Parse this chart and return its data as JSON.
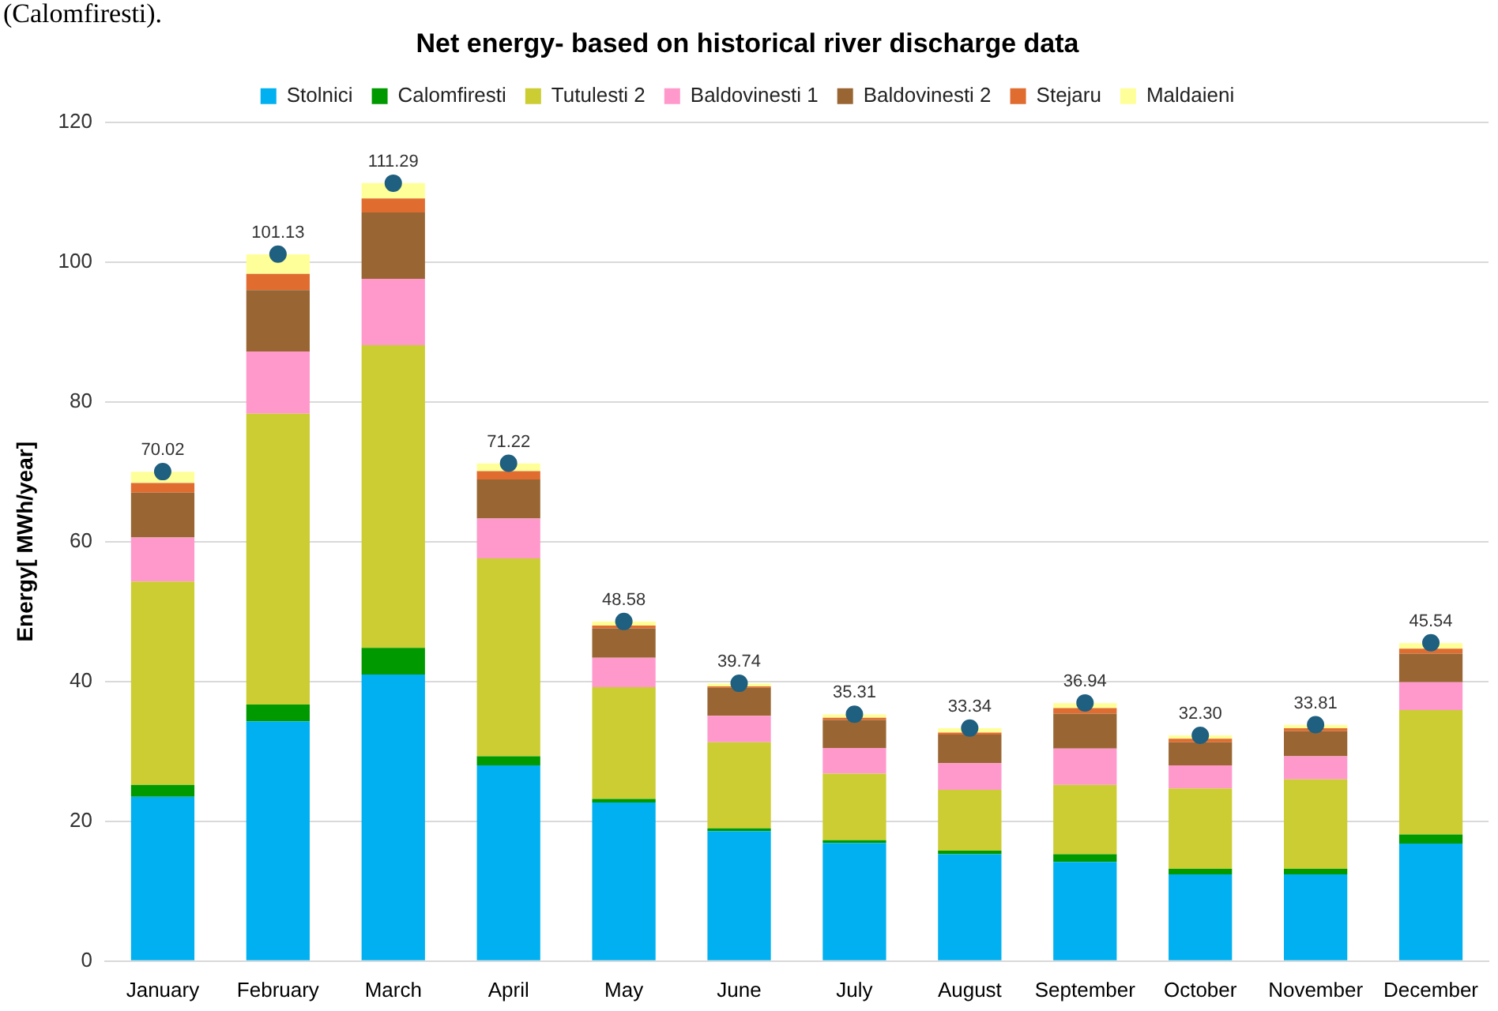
{
  "chart_data": {
    "type": "bar",
    "title": "Net energy- based on historical river discharge data",
    "ylabel": "Energy[ MWh/year]",
    "annotations": [
      "(Calomfiresti)."
    ],
    "categories": [
      "January",
      "February",
      "March",
      "April",
      "May",
      "June",
      "July",
      "August",
      "September",
      "October",
      "November",
      "December"
    ],
    "stacked": true,
    "ylim": [
      0,
      120
    ],
    "yticks": [
      0,
      20,
      40,
      60,
      80,
      100,
      120
    ],
    "grid": "y",
    "legend": "top",
    "series": [
      {
        "name": "Stolnici",
        "color": "#00b0f0",
        "values": [
          23.5,
          34.3,
          41.0,
          28.0,
          22.7,
          18.6,
          16.9,
          15.3,
          14.2,
          12.4,
          12.4,
          16.8
        ]
      },
      {
        "name": "Calomfiresti",
        "color": "#009900",
        "values": [
          1.7,
          2.4,
          3.8,
          1.3,
          0.5,
          0.4,
          0.4,
          0.5,
          1.1,
          0.8,
          0.8,
          1.3
        ]
      },
      {
        "name": "Tutulesti 2",
        "color": "#cccc33",
        "values": [
          29.1,
          41.6,
          43.3,
          28.3,
          16.0,
          12.3,
          9.5,
          8.7,
          9.9,
          11.5,
          12.8,
          17.8
        ]
      },
      {
        "name": "Baldovinesti 1",
        "color": "#ff99cc",
        "values": [
          6.3,
          8.9,
          9.5,
          5.7,
          4.2,
          3.8,
          3.7,
          3.8,
          5.2,
          3.3,
          3.3,
          4.0
        ]
      },
      {
        "name": "Baldovinesti 2",
        "color": "#996633",
        "values": [
          6.4,
          8.8,
          9.5,
          5.6,
          4.2,
          4.0,
          4.0,
          4.1,
          5.0,
          3.3,
          3.6,
          4.1
        ]
      },
      {
        "name": "Stejaru",
        "color": "#e06c30",
        "values": [
          1.4,
          2.3,
          2.0,
          1.2,
          0.4,
          0.2,
          0.3,
          0.3,
          0.8,
          0.5,
          0.4,
          0.7
        ]
      },
      {
        "name": "Maldaieni",
        "color": "#ffff99",
        "values": [
          1.6,
          2.8,
          2.2,
          1.1,
          0.6,
          0.4,
          0.5,
          0.6,
          0.7,
          0.5,
          0.5,
          0.8
        ]
      },
      {
        "type": "scatter",
        "color": "#1f5f7f",
        "marker": "circle",
        "values": [
          70.02,
          101.13,
          111.29,
          71.22,
          48.58,
          39.74,
          35.31,
          33.34,
          36.94,
          32.3,
          33.81,
          45.54
        ],
        "value_labels": [
          "70.02",
          "101.13",
          "111.29",
          "71.22",
          "48.58",
          "39.74",
          "35.31",
          "33.34",
          "36.94",
          "32.30",
          "33.81",
          "45.54"
        ]
      }
    ]
  }
}
